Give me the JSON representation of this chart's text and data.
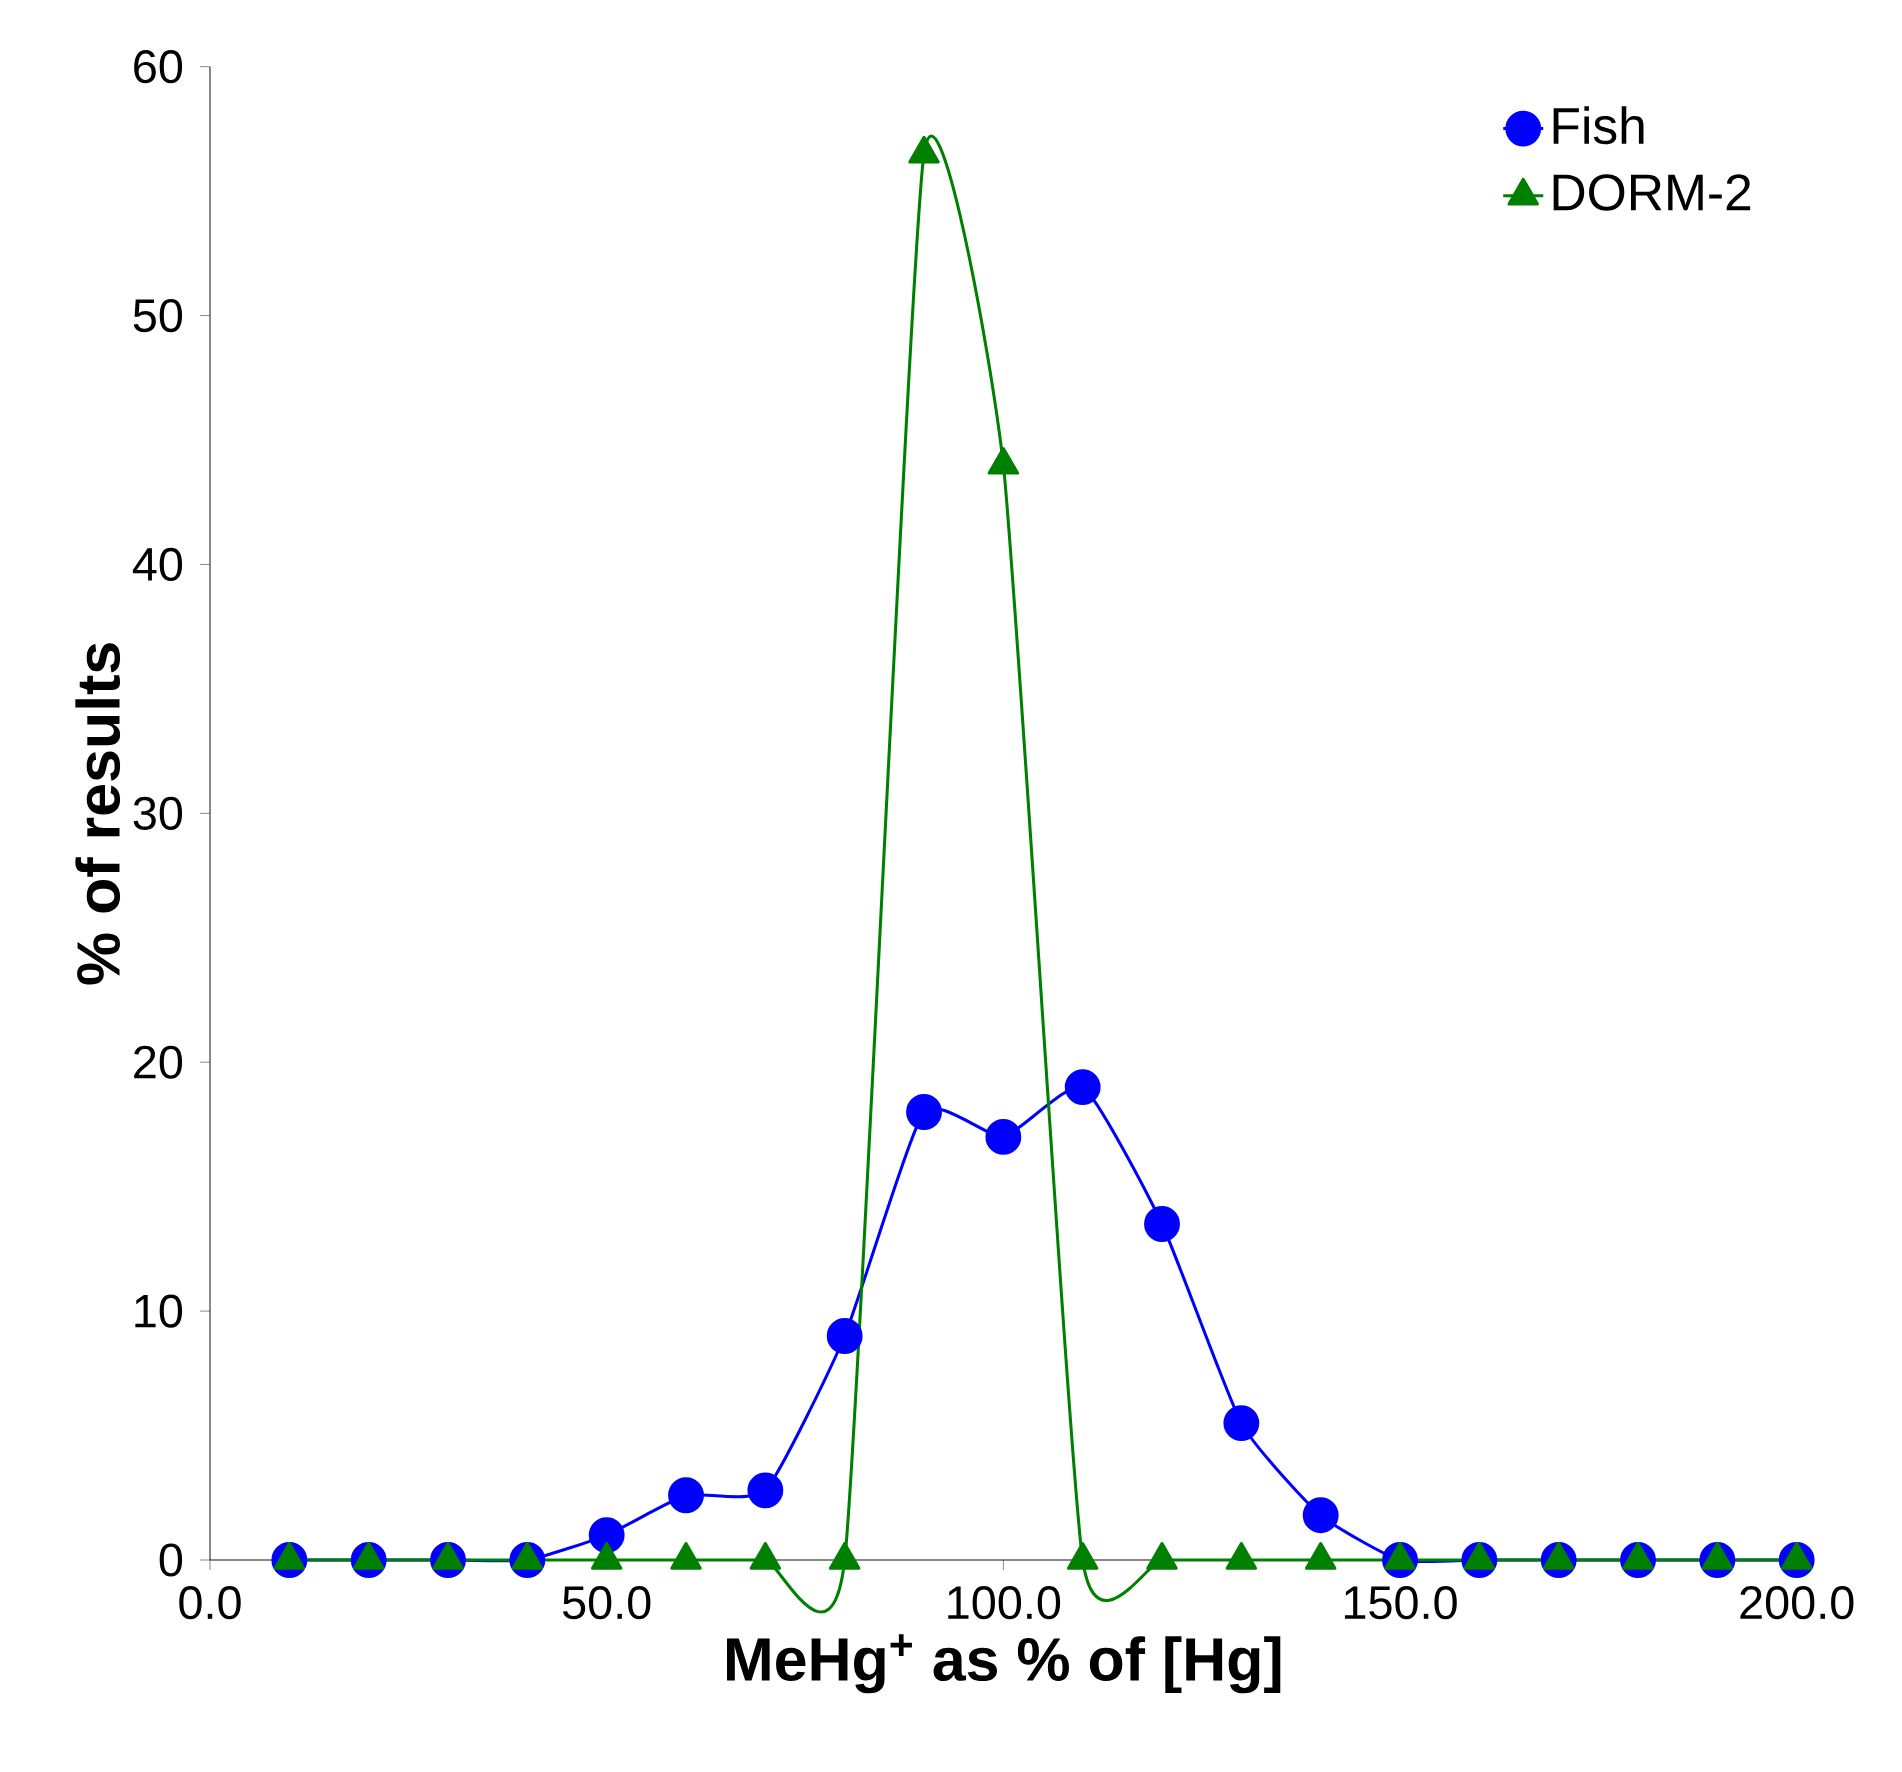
{
  "chart_data": {
    "type": "line",
    "xlabel": "MeHg$^{+}$ as % of [Hg]",
    "ylabel": "% of results",
    "x": [
      10,
      20,
      30,
      40,
      50,
      60,
      70,
      80,
      90,
      100,
      110,
      120,
      130,
      140,
      150,
      160,
      170,
      180,
      190,
      200
    ],
    "series": [
      {
        "name": "Fish",
        "color": "#0000ff",
        "marker": "circle",
        "values": [
          0,
          0,
          0,
          0,
          1,
          2.6,
          2.8,
          9,
          18,
          17,
          19,
          13.5,
          5.5,
          1.8,
          0,
          0,
          0,
          0,
          0,
          0
        ]
      },
      {
        "name": "DORM-2",
        "color": "#008000",
        "marker": "triangle",
        "values": [
          0,
          0,
          0,
          0,
          0,
          0,
          0,
          0,
          56.5,
          44,
          0,
          0,
          0,
          0,
          0,
          0,
          0,
          0,
          0,
          0
        ]
      }
    ],
    "xlim": [
      0,
      200
    ],
    "ylim": [
      0,
      60
    ],
    "xticks": [
      {
        "value": 0,
        "label": "0.0"
      },
      {
        "value": 50,
        "label": "50.0"
      },
      {
        "value": 100,
        "label": "100.0"
      },
      {
        "value": 150,
        "label": "150.0"
      },
      {
        "value": 200,
        "label": "200.0"
      }
    ],
    "yticks": [
      0,
      10,
      20,
      30,
      40,
      50,
      60
    ],
    "grid": false,
    "legend": "top right",
    "line_style": "solid"
  }
}
